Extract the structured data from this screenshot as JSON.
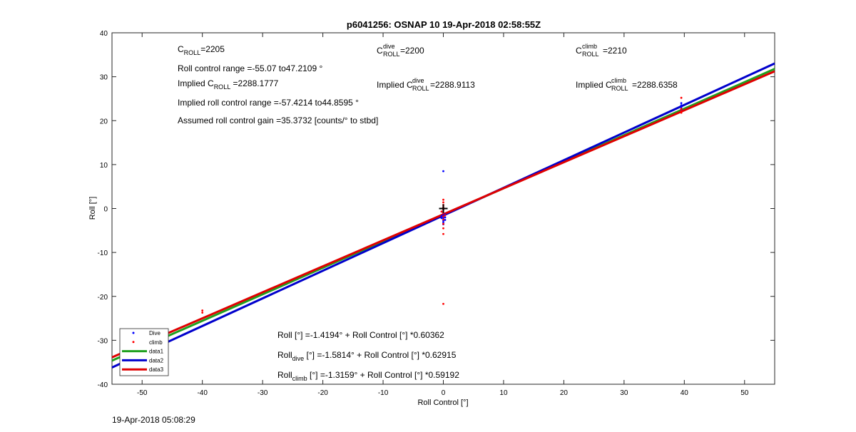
{
  "chart_data": {
    "type": "scatter",
    "title": "p6041256: OSNAP 10 19-Apr-2018 02:58:55Z",
    "xlabel": "Roll Control [°]",
    "ylabel": "Roll [°]",
    "xlim": [
      -55,
      55
    ],
    "ylim": [
      -40,
      40
    ],
    "xticks": [
      -50,
      -40,
      -30,
      -20,
      -10,
      0,
      10,
      20,
      30,
      40,
      50
    ],
    "yticks": [
      -40,
      -30,
      -20,
      -10,
      0,
      10,
      20,
      30,
      40
    ],
    "grid": false,
    "legend_position": "bottom-left",
    "legend": [
      {
        "label": "Dive",
        "kind": "marker",
        "color": "#0000ff"
      },
      {
        "label": "climb",
        "kind": "marker",
        "color": "#ff0000"
      },
      {
        "label": "data1",
        "kind": "line",
        "color": "#1fa01f"
      },
      {
        "label": "data2",
        "kind": "line",
        "color": "#0000cc"
      },
      {
        "label": "data3",
        "kind": "line",
        "color": "#e00000"
      }
    ],
    "series": [
      {
        "name": "Dive",
        "kind": "scatter",
        "color": "#0000ff",
        "points": [
          [
            0,
            8.5
          ],
          [
            0,
            -1.0
          ],
          [
            0,
            -1.5
          ],
          [
            0,
            -2.0
          ],
          [
            0,
            -2.4
          ],
          [
            0,
            -2.8
          ],
          [
            0,
            -3.2
          ],
          [
            0,
            -3.6
          ],
          [
            0.3,
            -1.3
          ],
          [
            0.3,
            -2.0
          ],
          [
            0.3,
            -2.6
          ],
          [
            -0.3,
            -2.2
          ],
          [
            -0.3,
            -1.7
          ],
          [
            39.5,
            22.5
          ],
          [
            39.5,
            23.0
          ],
          [
            39.5,
            23.5
          ],
          [
            39.5,
            24.0
          ]
        ]
      },
      {
        "name": "climb",
        "kind": "scatter",
        "color": "#ff0000",
        "points": [
          [
            -40,
            -23.2
          ],
          [
            -40,
            -23.7
          ],
          [
            0,
            2.0
          ],
          [
            0,
            1.4
          ],
          [
            0,
            0.8
          ],
          [
            0,
            0.3
          ],
          [
            0,
            -0.3
          ],
          [
            0,
            -1.0
          ],
          [
            0,
            -1.8
          ],
          [
            0,
            -2.5
          ],
          [
            0,
            -3.5
          ],
          [
            0,
            -4.5
          ],
          [
            0,
            -5.8
          ],
          [
            0,
            -21.7
          ],
          [
            0.3,
            -1.5
          ],
          [
            -0.3,
            -0.7
          ],
          [
            39.5,
            21.8
          ],
          [
            39.5,
            22.2
          ],
          [
            39.5,
            22.7
          ],
          [
            39.5,
            25.2
          ]
        ]
      },
      {
        "name": "data1",
        "kind": "line",
        "color": "#1fa01f",
        "intercept": -1.4194,
        "slope": 0.60362
      },
      {
        "name": "data2",
        "kind": "line",
        "color": "#0000cc",
        "intercept": -1.5814,
        "slope": 0.62915
      },
      {
        "name": "data3",
        "kind": "line",
        "color": "#e00000",
        "intercept": -1.3159,
        "slope": 0.59192
      }
    ],
    "center_marker": {
      "x": 0,
      "y": 0,
      "symbol": "+",
      "color": "#000000"
    },
    "annotations": {
      "c_roll": {
        "sym": "C",
        "sub": "ROLL",
        "sup": "",
        "rest": "=2205"
      },
      "c_roll_dive": {
        "sym": "C",
        "sub": "ROLL",
        "sup": "dive",
        "rest": " =2200"
      },
      "c_roll_climb": {
        "sym": "C",
        "sub": "ROLL",
        "sup": "climb",
        "rest": " =2210"
      },
      "range": "Roll control range =-55.07 to47.2109 °",
      "implied": {
        "pre": "Implied C",
        "sub": "ROLL",
        "rest": " =2288.1777"
      },
      "implied_dive": {
        "pre": "Implied C",
        "sub": "ROLL",
        "sup": "dive",
        "rest": " =2288.9113"
      },
      "implied_climb": {
        "pre": "Implied C",
        "sub": "ROLL",
        "sup": "climb",
        "rest": " =2288.6358"
      },
      "implied_range": "Implied roll control range =-57.4214 to44.8595 °",
      "gain": "Assumed roll control gain =35.3732 [counts/° to stbd]",
      "eq1": {
        "pre": "Roll",
        "sub": "",
        "rest": " [°] =-1.4194° + Roll Control [°] *0.60362"
      },
      "eq2": {
        "pre": "Roll",
        "sub": "dive",
        "rest": " [°] =-1.5814° + Roll Control [°] *0.62915"
      },
      "eq3": {
        "pre": "Roll",
        "sub": "climb",
        "rest": " [°] =-1.3159° + Roll Control [°] *0.59192"
      }
    }
  },
  "footer": {
    "timestamp": "19-Apr-2018 05:08:29"
  }
}
